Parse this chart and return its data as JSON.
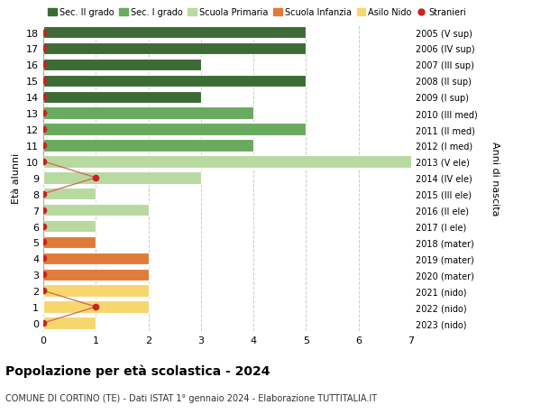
{
  "ages": [
    18,
    17,
    16,
    15,
    14,
    13,
    12,
    11,
    10,
    9,
    8,
    7,
    6,
    5,
    4,
    3,
    2,
    1,
    0
  ],
  "right_labels": [
    "2005 (V sup)",
    "2006 (IV sup)",
    "2007 (III sup)",
    "2008 (II sup)",
    "2009 (I sup)",
    "2010 (III med)",
    "2011 (II med)",
    "2012 (I med)",
    "2013 (V ele)",
    "2014 (IV ele)",
    "2015 (III ele)",
    "2016 (II ele)",
    "2017 (I ele)",
    "2018 (mater)",
    "2019 (mater)",
    "2020 (mater)",
    "2021 (nido)",
    "2022 (nido)",
    "2023 (nido)"
  ],
  "bar_values": [
    5,
    5,
    3,
    5,
    3,
    4,
    5,
    4,
    7,
    3,
    1,
    2,
    1,
    1,
    2,
    2,
    2,
    2,
    1
  ],
  "bar_colors": [
    "#3d6b35",
    "#3d6b35",
    "#3d6b35",
    "#3d6b35",
    "#3d6b35",
    "#6aaa5e",
    "#6aaa5e",
    "#6aaa5e",
    "#b8d9a0",
    "#b8d9a0",
    "#b8d9a0",
    "#b8d9a0",
    "#b8d9a0",
    "#e07b39",
    "#e07b39",
    "#e07b39",
    "#f5d76e",
    "#f5d76e",
    "#f5d76e"
  ],
  "stranieri_values": [
    0,
    0,
    0,
    0,
    0,
    0,
    0,
    0,
    0,
    1,
    0,
    0,
    0,
    0,
    0,
    0,
    0,
    1,
    0
  ],
  "stranieri_color": "#cc2222",
  "stranieri_line_color": "#cc6655",
  "title_main": "Popolazione per età scolastica - 2024",
  "title_sub": "COMUNE DI CORTINO (TE) - Dati ISTAT 1° gennaio 2024 - Elaborazione TUTTITALIA.IT",
  "ylabel_left": "Età alunni",
  "ylabel_right": "Anni di nascita",
  "xlim_max": 7,
  "legend_labels": [
    "Sec. II grado",
    "Sec. I grado",
    "Scuola Primaria",
    "Scuola Infanzia",
    "Asilo Nido",
    "Stranieri"
  ],
  "legend_colors": [
    "#3d6b35",
    "#6aaa5e",
    "#b8d9a0",
    "#e07b39",
    "#f5d76e",
    "#cc2222"
  ],
  "bg_color": "#ffffff",
  "grid_color": "#cccccc"
}
